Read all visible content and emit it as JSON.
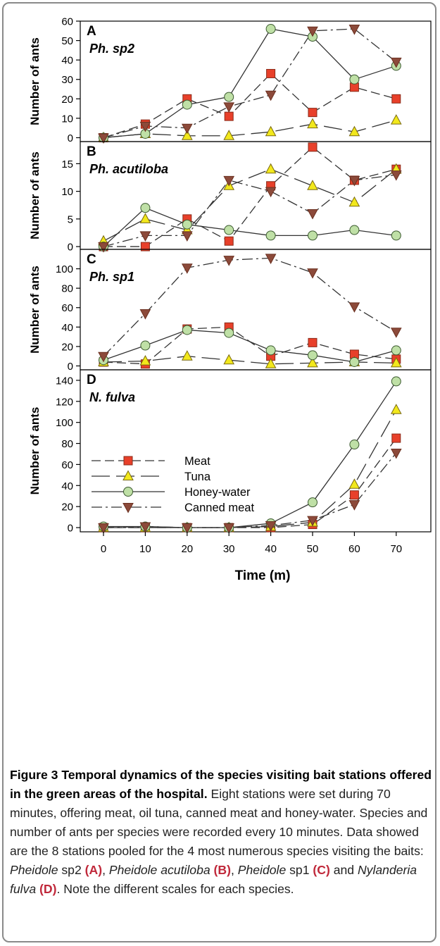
{
  "chart_data": {
    "type": "line",
    "x_values": [
      0,
      10,
      20,
      30,
      40,
      50,
      60,
      70
    ],
    "x_tick_labels": [
      "0",
      "10",
      "20",
      "30",
      "40",
      "50",
      "60",
      "70"
    ],
    "xlabel": "Time (m)",
    "ylabel": "Number of ants",
    "legend_position": "center-left (panel D)",
    "legend": [
      {
        "key": "meat",
        "label": "Meat"
      },
      {
        "key": "tuna",
        "label": "Tuna"
      },
      {
        "key": "honey",
        "label": "Honey-water"
      },
      {
        "key": "canned",
        "label": "Canned meat"
      }
    ],
    "styles": {
      "meat": {
        "marker": "square",
        "fill": "#e8402a",
        "dash": "13,6"
      },
      "tuna": {
        "marker": "triangle-up",
        "fill": "#f2e81c",
        "dash": "26,9"
      },
      "honey": {
        "marker": "circle",
        "fill": "#bfe0a6",
        "dash": ""
      },
      "canned": {
        "marker": "triangle-down",
        "fill": "#8c4a3a",
        "dash": "15,5,3,5"
      }
    },
    "panels": [
      {
        "letter": "A",
        "species_label": "Ph. sp2",
        "ylim": [
          -2,
          60
        ],
        "yticks": [
          0,
          10,
          20,
          30,
          40,
          50,
          60
        ],
        "series": {
          "meat": [
            0,
            7,
            20,
            11,
            33,
            13,
            26,
            20
          ],
          "tuna": [
            0,
            2,
            1,
            1,
            3,
            7,
            3,
            9
          ],
          "honey": [
            0,
            2,
            17,
            21,
            56,
            52,
            30,
            37
          ],
          "canned": [
            0,
            6,
            5,
            16,
            22,
            55,
            56,
            39
          ]
        }
      },
      {
        "letter": "B",
        "species_label": "Ph. acutiloba",
        "ylim": [
          -0.5,
          19
        ],
        "yticks": [
          0,
          5,
          10,
          15
        ],
        "series": {
          "meat": [
            0,
            0,
            5,
            1,
            11,
            18,
            12,
            14
          ],
          "tuna": [
            1,
            5,
            3,
            11,
            14,
            11,
            8,
            14
          ],
          "honey": [
            0,
            7,
            4,
            3,
            2,
            2,
            3,
            2
          ],
          "canned": [
            0,
            2,
            2,
            12,
            10,
            6,
            12,
            13
          ]
        }
      },
      {
        "letter": "C",
        "species_label": "Ph. sp1",
        "ylim": [
          -4,
          120
        ],
        "yticks": [
          0,
          20,
          40,
          60,
          80,
          100
        ],
        "series": {
          "meat": [
            4,
            2,
            38,
            40,
            10,
            24,
            12,
            7
          ],
          "tuna": [
            4,
            5,
            10,
            6,
            2,
            3,
            4,
            3
          ],
          "honey": [
            6,
            21,
            37,
            34,
            16,
            11,
            4,
            16
          ],
          "canned": [
            10,
            54,
            101,
            109,
            111,
            96,
            61,
            35
          ]
        }
      },
      {
        "letter": "D",
        "species_label": "N. fulva",
        "ylim": [
          -4,
          150
        ],
        "yticks": [
          0,
          20,
          40,
          60,
          80,
          100,
          120,
          140
        ],
        "series": {
          "meat": [
            0,
            0,
            0,
            0,
            0,
            3,
            31,
            85
          ],
          "tuna": [
            0,
            0,
            0,
            0,
            1,
            5,
            41,
            112
          ],
          "honey": [
            1,
            1,
            0,
            0,
            4,
            24,
            79,
            139
          ],
          "canned": [
            0,
            1,
            0,
            0,
            2,
            7,
            22,
            71
          ]
        }
      }
    ]
  },
  "caption": {
    "title": "Figure 3 Temporal dynamics of the species visiting bait stations offered in the green areas of the hospital.",
    "text_1": " Eight stations were set during 70 minutes, offering meat, oil tuna, canned meat and honey-water. Species and number of ants per species were recorded every 10 minutes. Data showed are the 8 stations pooled for the 4 most numerous species visiting the baits: ",
    "sp_a": "Pheidole",
    "sp_a_rest": " sp2 ",
    "ref_a": "(A)",
    "sep_1": ", ",
    "sp_b": "Pheidole acutiloba",
    "ref_b": " (B)",
    "sep_2": ", ",
    "sp_c": "Pheidole",
    "sp_c_rest": " sp1 ",
    "ref_c": "(C)",
    "sep_3": " and ",
    "sp_d": "Nylanderia fulva",
    "ref_d": " (D)",
    "text_2": ". Note the different scales for each species."
  }
}
